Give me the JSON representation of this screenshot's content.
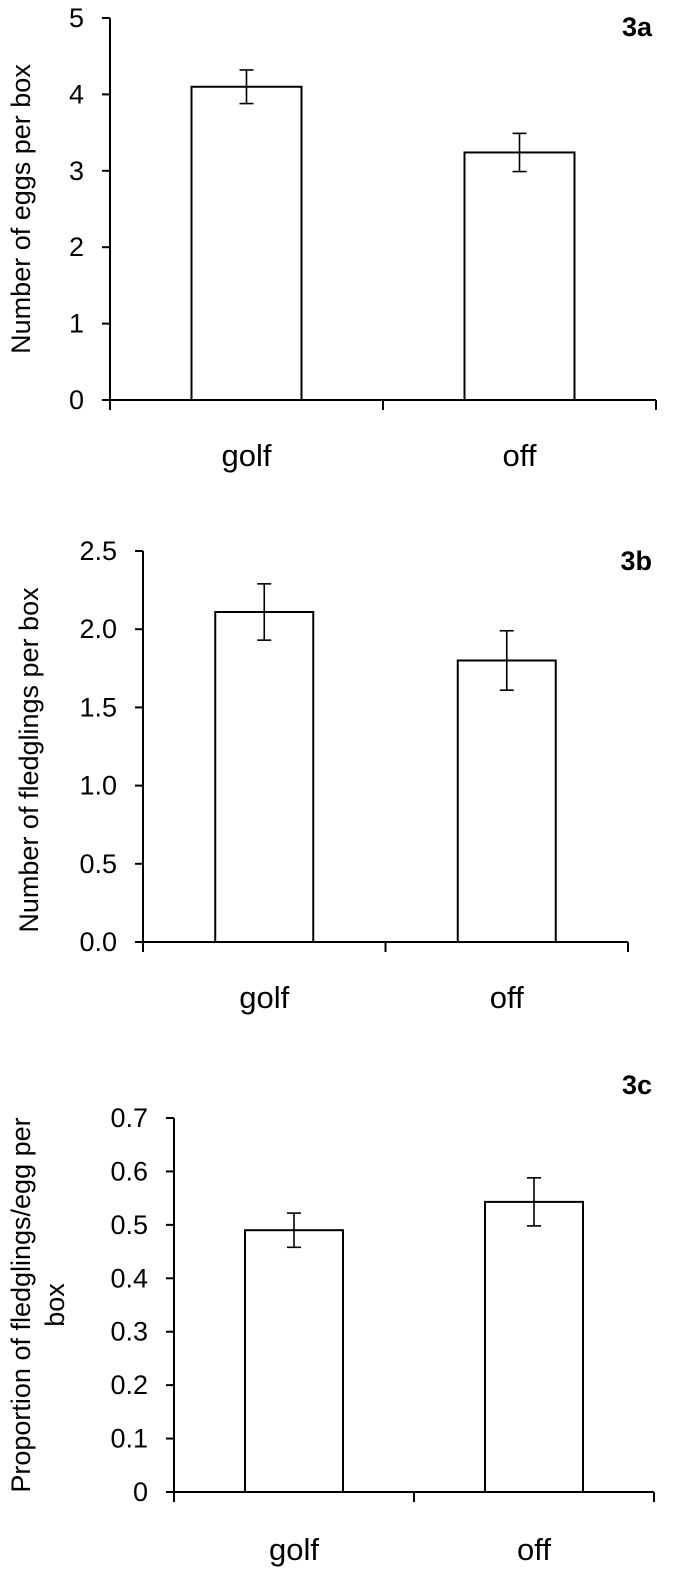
{
  "chart_data": [
    {
      "type": "bar",
      "panel_label": "3a",
      "categories": [
        "golf",
        "off"
      ],
      "values": [
        4.1,
        3.24
      ],
      "errors": [
        0.22,
        0.25
      ],
      "ylabel": "Number of eggs per box",
      "ylim": [
        0,
        5
      ],
      "yticks": [
        "0",
        "1",
        "2",
        "3",
        "4",
        "5"
      ],
      "grid": false,
      "legend": "none"
    },
    {
      "type": "bar",
      "panel_label": "3b",
      "categories": [
        "golf",
        "off"
      ],
      "values": [
        2.11,
        1.8
      ],
      "errors": [
        0.18,
        0.19
      ],
      "ylabel": "Number of fledglings per box",
      "ylim": [
        0,
        2.5
      ],
      "yticks": [
        "0.0",
        "0.5",
        "1.0",
        "1.5",
        "2.0",
        "2.5"
      ],
      "grid": false,
      "legend": "none"
    },
    {
      "type": "bar",
      "panel_label": "3c",
      "categories": [
        "golf",
        "off"
      ],
      "values": [
        0.49,
        0.543
      ],
      "errors": [
        0.032,
        0.045
      ],
      "ylabel": [
        "Proportion of fledglings/egg per",
        "box"
      ],
      "ylim": [
        0,
        0.7
      ],
      "yticks": [
        "0",
        "0.1",
        "0.2",
        "0.3",
        "0.4",
        "0.5",
        "0.6",
        "0.7"
      ],
      "grid": false,
      "legend": "none"
    }
  ]
}
